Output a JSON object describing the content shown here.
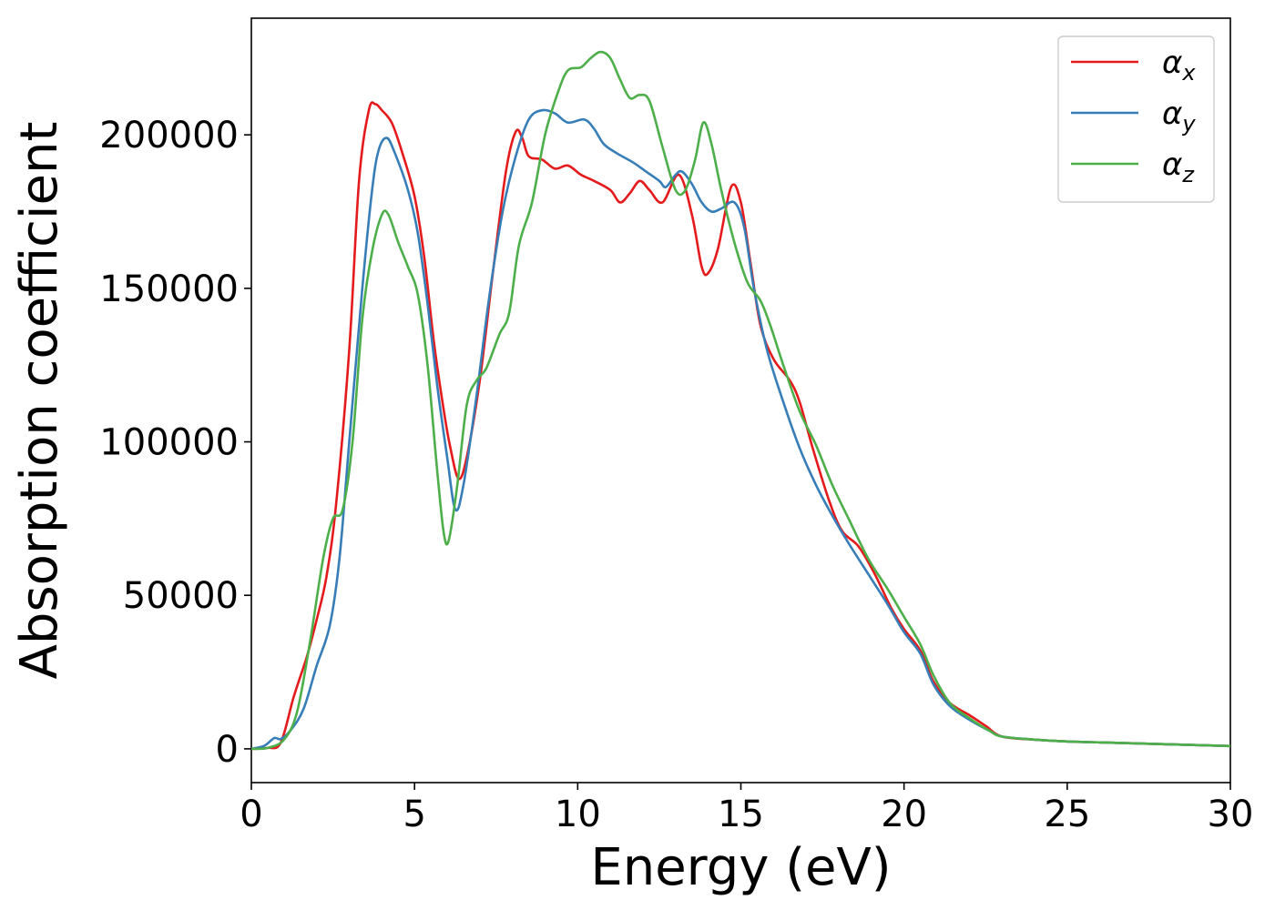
{
  "chart_data": {
    "type": "line",
    "title": "",
    "xlabel": "Energy (eV)",
    "ylabel": "Absorption coefficient",
    "xlim": [
      0,
      30
    ],
    "ylim": [
      -11000,
      238000
    ],
    "xticks": [
      0,
      5,
      10,
      15,
      20,
      25,
      30
    ],
    "yticks": [
      0,
      50000,
      100000,
      150000,
      200000
    ],
    "grid": false,
    "legend": "top-right",
    "series": [
      {
        "name": "α_x",
        "label_main": "α",
        "label_sub": "x",
        "color": "#e41a1c",
        "points": [
          [
            0,
            0
          ],
          [
            0.5,
            300
          ],
          [
            0.9,
            2000
          ],
          [
            1.3,
            17000
          ],
          [
            1.7,
            30000
          ],
          [
            2.0,
            42000
          ],
          [
            2.3,
            56000
          ],
          [
            2.6,
            80000
          ],
          [
            3.0,
            130000
          ],
          [
            3.3,
            185000
          ],
          [
            3.6,
            208000
          ],
          [
            3.8,
            210000
          ],
          [
            4.0,
            208000
          ],
          [
            4.3,
            204000
          ],
          [
            4.6,
            195000
          ],
          [
            5.0,
            180000
          ],
          [
            5.3,
            160000
          ],
          [
            5.6,
            132000
          ],
          [
            5.9,
            110000
          ],
          [
            6.1,
            98000
          ],
          [
            6.35,
            88000
          ],
          [
            6.6,
            95000
          ],
          [
            7.0,
            120000
          ],
          [
            7.4,
            155000
          ],
          [
            7.8,
            188000
          ],
          [
            8.1,
            201000
          ],
          [
            8.3,
            199000
          ],
          [
            8.5,
            193000
          ],
          [
            8.9,
            192000
          ],
          [
            9.3,
            189000
          ],
          [
            9.7,
            190000
          ],
          [
            10.1,
            187000
          ],
          [
            10.5,
            185000
          ],
          [
            11.0,
            182000
          ],
          [
            11.3,
            178000
          ],
          [
            11.6,
            181000
          ],
          [
            11.9,
            185000
          ],
          [
            12.2,
            182000
          ],
          [
            12.6,
            178000
          ],
          [
            13.1,
            187000
          ],
          [
            13.5,
            174000
          ],
          [
            13.8,
            157000
          ],
          [
            14.0,
            155000
          ],
          [
            14.3,
            163000
          ],
          [
            14.7,
            183000
          ],
          [
            15.0,
            178000
          ],
          [
            15.3,
            158000
          ],
          [
            15.6,
            138000
          ],
          [
            16.0,
            127000
          ],
          [
            16.5,
            120000
          ],
          [
            16.8,
            113000
          ],
          [
            17.2,
            98000
          ],
          [
            17.7,
            81000
          ],
          [
            18.1,
            71000
          ],
          [
            18.6,
            66000
          ],
          [
            19.1,
            57000
          ],
          [
            19.6,
            46000
          ],
          [
            20.0,
            39000
          ],
          [
            20.5,
            32000
          ],
          [
            20.9,
            22000
          ],
          [
            21.4,
            15000
          ],
          [
            22.0,
            11000
          ],
          [
            22.5,
            7500
          ],
          [
            23.0,
            4000
          ],
          [
            24.0,
            3000
          ],
          [
            25.0,
            2400
          ],
          [
            26.0,
            2100
          ],
          [
            27.0,
            1800
          ],
          [
            28.0,
            1500
          ],
          [
            29.0,
            1200
          ],
          [
            30.0,
            900
          ]
        ]
      },
      {
        "name": "α_y",
        "label_main": "α",
        "label_sub": "y",
        "color": "#377eb8",
        "points": [
          [
            0,
            0
          ],
          [
            0.4,
            1000
          ],
          [
            0.7,
            3500
          ],
          [
            0.9,
            3200
          ],
          [
            1.2,
            6000
          ],
          [
            1.6,
            13000
          ],
          [
            2.0,
            27000
          ],
          [
            2.4,
            40000
          ],
          [
            2.7,
            62000
          ],
          [
            3.0,
            100000
          ],
          [
            3.4,
            150000
          ],
          [
            3.7,
            182000
          ],
          [
            3.9,
            195000
          ],
          [
            4.15,
            199000
          ],
          [
            4.4,
            194000
          ],
          [
            4.8,
            182000
          ],
          [
            5.1,
            168000
          ],
          [
            5.4,
            145000
          ],
          [
            5.7,
            118000
          ],
          [
            6.0,
            95000
          ],
          [
            6.25,
            78000
          ],
          [
            6.5,
            86000
          ],
          [
            6.9,
            115000
          ],
          [
            7.3,
            148000
          ],
          [
            7.7,
            175000
          ],
          [
            8.1,
            193000
          ],
          [
            8.5,
            205000
          ],
          [
            8.9,
            208000
          ],
          [
            9.3,
            207000
          ],
          [
            9.7,
            204000
          ],
          [
            10.2,
            205000
          ],
          [
            10.5,
            202000
          ],
          [
            10.8,
            197000
          ],
          [
            11.2,
            194000
          ],
          [
            11.7,
            191000
          ],
          [
            12.1,
            188000
          ],
          [
            12.5,
            185000
          ],
          [
            12.7,
            183000
          ],
          [
            13.0,
            187000
          ],
          [
            13.2,
            188000
          ],
          [
            13.5,
            184000
          ],
          [
            13.8,
            178000
          ],
          [
            14.1,
            175000
          ],
          [
            14.4,
            176000
          ],
          [
            14.8,
            178000
          ],
          [
            15.1,
            170000
          ],
          [
            15.4,
            150000
          ],
          [
            15.8,
            130000
          ],
          [
            16.3,
            113000
          ],
          [
            16.8,
            98000
          ],
          [
            17.3,
            86000
          ],
          [
            17.8,
            76000
          ],
          [
            18.3,
            67000
          ],
          [
            18.9,
            57000
          ],
          [
            19.5,
            47000
          ],
          [
            20.0,
            38000
          ],
          [
            20.5,
            31000
          ],
          [
            20.9,
            21000
          ],
          [
            21.4,
            14000
          ],
          [
            22.0,
            9500
          ],
          [
            22.6,
            6000
          ],
          [
            23.0,
            4000
          ],
          [
            24.0,
            3000
          ],
          [
            25.0,
            2400
          ],
          [
            26.0,
            2100
          ],
          [
            27.0,
            1800
          ],
          [
            28.0,
            1500
          ],
          [
            29.0,
            1200
          ],
          [
            30.0,
            900
          ]
        ]
      },
      {
        "name": "α_z",
        "label_main": "α",
        "label_sub": "z",
        "color": "#4daf4a",
        "points": [
          [
            0,
            0
          ],
          [
            0.5,
            300
          ],
          [
            1.0,
            3000
          ],
          [
            1.4,
            12000
          ],
          [
            1.8,
            35000
          ],
          [
            2.2,
            62000
          ],
          [
            2.5,
            75000
          ],
          [
            2.8,
            78000
          ],
          [
            3.1,
            100000
          ],
          [
            3.4,
            140000
          ],
          [
            3.7,
            162000
          ],
          [
            4.0,
            174000
          ],
          [
            4.2,
            174000
          ],
          [
            4.5,
            165000
          ],
          [
            4.8,
            157000
          ],
          [
            5.1,
            148000
          ],
          [
            5.4,
            125000
          ],
          [
            5.7,
            90000
          ],
          [
            5.9,
            70000
          ],
          [
            6.05,
            68000
          ],
          [
            6.3,
            85000
          ],
          [
            6.6,
            112000
          ],
          [
            6.9,
            120000
          ],
          [
            7.2,
            124000
          ],
          [
            7.6,
            135000
          ],
          [
            7.9,
            142000
          ],
          [
            8.2,
            164000
          ],
          [
            8.6,
            178000
          ],
          [
            9.0,
            200000
          ],
          [
            9.4,
            214000
          ],
          [
            9.7,
            221000
          ],
          [
            10.1,
            222000
          ],
          [
            10.4,
            225000
          ],
          [
            10.7,
            227000
          ],
          [
            11.0,
            225000
          ],
          [
            11.3,
            218000
          ],
          [
            11.6,
            212000
          ],
          [
            11.9,
            213000
          ],
          [
            12.2,
            211000
          ],
          [
            12.6,
            196000
          ],
          [
            13.0,
            182000
          ],
          [
            13.3,
            182000
          ],
          [
            13.6,
            192000
          ],
          [
            13.85,
            204000
          ],
          [
            14.1,
            197000
          ],
          [
            14.4,
            182000
          ],
          [
            14.8,
            165000
          ],
          [
            15.2,
            152000
          ],
          [
            15.6,
            146000
          ],
          [
            15.9,
            138000
          ],
          [
            16.3,
            125000
          ],
          [
            16.8,
            110000
          ],
          [
            17.3,
            99000
          ],
          [
            17.8,
            86000
          ],
          [
            18.3,
            75000
          ],
          [
            18.9,
            62000
          ],
          [
            19.5,
            52000
          ],
          [
            20.0,
            43000
          ],
          [
            20.5,
            34000
          ],
          [
            20.9,
            24000
          ],
          [
            21.4,
            15000
          ],
          [
            22.0,
            10000
          ],
          [
            22.6,
            6000
          ],
          [
            23.0,
            4000
          ],
          [
            24.0,
            3000
          ],
          [
            25.0,
            2400
          ],
          [
            26.0,
            2100
          ],
          [
            27.0,
            1800
          ],
          [
            28.0,
            1500
          ],
          [
            29.0,
            1200
          ],
          [
            30.0,
            900
          ]
        ]
      }
    ]
  }
}
